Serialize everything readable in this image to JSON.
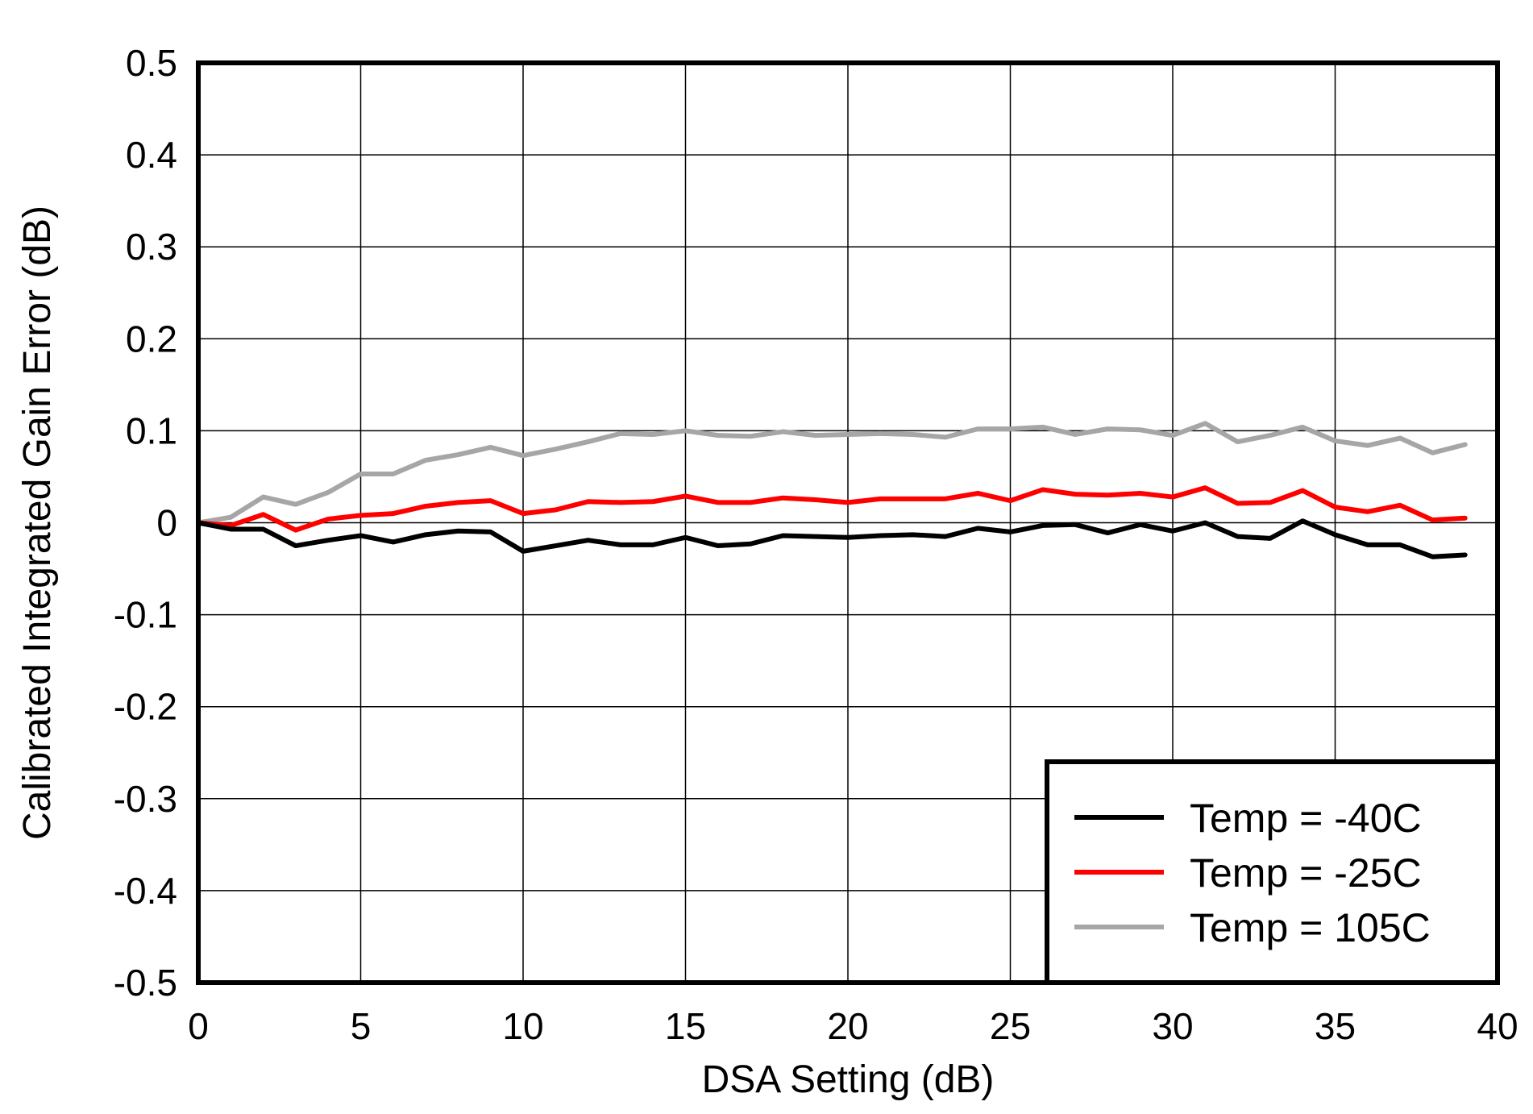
{
  "chart_data": {
    "type": "line",
    "title": "",
    "xlabel": "DSA Setting (dB)",
    "ylabel": "Calibrated Integrated Gain Error (dB)",
    "xlim": [
      0,
      40
    ],
    "ylim": [
      -0.5,
      0.5
    ],
    "xticks": [
      0,
      5,
      10,
      15,
      20,
      25,
      30,
      35,
      40
    ],
    "yticks": [
      0.5,
      0.4,
      0.3,
      0.2,
      0.1,
      0,
      -0.1,
      -0.2,
      -0.3,
      -0.4,
      -0.5
    ],
    "xtick_labels": [
      "0",
      "5",
      "10",
      "15",
      "20",
      "25",
      "30",
      "35",
      "40"
    ],
    "ytick_labels": [
      "0.5",
      "0.4",
      "0.3",
      "0.2",
      "0.1",
      "0",
      "-0.1",
      "-0.2",
      "-0.3",
      "-0.4",
      "-0.5"
    ],
    "grid": true,
    "legend_position": "bottom-right",
    "x": [
      0,
      1,
      2,
      3,
      4,
      5,
      6,
      7,
      8,
      9,
      10,
      11,
      12,
      13,
      14,
      15,
      16,
      17,
      18,
      19,
      20,
      21,
      22,
      23,
      24,
      25,
      26,
      27,
      28,
      29,
      30,
      31,
      32,
      33,
      34,
      35,
      36,
      37,
      38,
      39
    ],
    "series": [
      {
        "name": "Temp = -40C",
        "color": "#000000",
        "values": [
          0,
          -0.007,
          -0.007,
          -0.025,
          -0.019,
          -0.014,
          -0.021,
          -0.013,
          -0.009,
          -0.01,
          -0.031,
          -0.025,
          -0.019,
          -0.024,
          -0.024,
          -0.016,
          -0.025,
          -0.023,
          -0.014,
          -0.015,
          -0.016,
          -0.014,
          -0.013,
          -0.015,
          -0.006,
          -0.01,
          -0.003,
          -0.002,
          -0.011,
          -0.002,
          -0.009,
          0,
          -0.015,
          -0.017,
          0.002,
          -0.013,
          -0.024,
          -0.024,
          -0.037,
          -0.035
        ]
      },
      {
        "name": "Temp = -25C",
        "color": "#ff0000",
        "values": [
          0,
          -0.003,
          0.009,
          -0.008,
          0.004,
          0.008,
          0.01,
          0.018,
          0.022,
          0.024,
          0.01,
          0.014,
          0.023,
          0.022,
          0.023,
          0.029,
          0.022,
          0.022,
          0.027,
          0.025,
          0.022,
          0.026,
          0.026,
          0.026,
          0.032,
          0.024,
          0.036,
          0.031,
          0.03,
          0.032,
          0.028,
          0.038,
          0.021,
          0.022,
          0.035,
          0.017,
          0.012,
          0.019,
          0.003,
          0.005
        ]
      },
      {
        "name": "Temp = 105C",
        "color": "#a6a6a6",
        "values": [
          0,
          0.006,
          0.028,
          0.02,
          0.033,
          0.053,
          0.053,
          0.068,
          0.074,
          0.082,
          0.073,
          0.08,
          0.088,
          0.097,
          0.096,
          0.1,
          0.095,
          0.094,
          0.099,
          0.095,
          0.096,
          0.097,
          0.096,
          0.093,
          0.102,
          0.102,
          0.104,
          0.096,
          0.102,
          0.101,
          0.095,
          0.108,
          0.088,
          0.095,
          0.104,
          0.089,
          0.084,
          0.092,
          0.076,
          0.085
        ]
      }
    ]
  }
}
